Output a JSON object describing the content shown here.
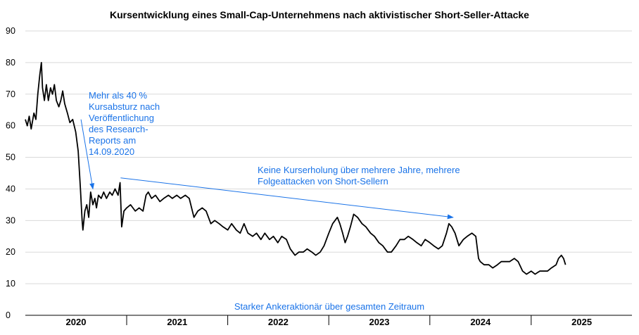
{
  "chart_data": {
    "type": "line",
    "title": "Kursentwicklung eines Small-Cap-Unternehmens nach aktivistischer Short-Seller-Attacke",
    "xlabel": "",
    "ylabel": "",
    "ylim": [
      0,
      90
    ],
    "yticks": [
      0,
      10,
      20,
      30,
      40,
      50,
      60,
      70,
      80,
      90
    ],
    "xlim": [
      "2020-01-01",
      "2025-12-31"
    ],
    "year_labels": [
      "2020",
      "2021",
      "2022",
      "2023",
      "2024",
      "2025"
    ],
    "grid": true,
    "line_color": "#000000",
    "annotation_color": "#1a73e8",
    "series": [
      {
        "points": [
          [
            "2020-01-01",
            62
          ],
          [
            "2020-01-08",
            60
          ],
          [
            "2020-01-15",
            63
          ],
          [
            "2020-01-22",
            59
          ],
          [
            "2020-02-01",
            64
          ],
          [
            "2020-02-08",
            62
          ],
          [
            "2020-02-15",
            70
          ],
          [
            "2020-02-22",
            76
          ],
          [
            "2020-02-28",
            80
          ],
          [
            "2020-03-03",
            72
          ],
          [
            "2020-03-10",
            68
          ],
          [
            "2020-03-17",
            73
          ],
          [
            "2020-03-24",
            68
          ],
          [
            "2020-04-01",
            72
          ],
          [
            "2020-04-08",
            70
          ],
          [
            "2020-04-15",
            73
          ],
          [
            "2020-04-22",
            68
          ],
          [
            "2020-05-01",
            66
          ],
          [
            "2020-05-08",
            68
          ],
          [
            "2020-05-15",
            71
          ],
          [
            "2020-05-22",
            67
          ],
          [
            "2020-06-01",
            64
          ],
          [
            "2020-06-10",
            61
          ],
          [
            "2020-06-20",
            62
          ],
          [
            "2020-07-01",
            58
          ],
          [
            "2020-07-10",
            52
          ],
          [
            "2020-07-18",
            40
          ],
          [
            "2020-07-24",
            30
          ],
          [
            "2020-07-27",
            27
          ],
          [
            "2020-08-03",
            33
          ],
          [
            "2020-08-10",
            35
          ],
          [
            "2020-08-17",
            31
          ],
          [
            "2020-08-24",
            39
          ],
          [
            "2020-09-01",
            35
          ],
          [
            "2020-09-08",
            37
          ],
          [
            "2020-09-14",
            34
          ],
          [
            "2020-09-21",
            38
          ],
          [
            "2020-10-01",
            37
          ],
          [
            "2020-10-10",
            39
          ],
          [
            "2020-10-20",
            37
          ],
          [
            "2020-11-01",
            39
          ],
          [
            "2020-11-10",
            38
          ],
          [
            "2020-11-20",
            40
          ],
          [
            "2020-12-01",
            38
          ],
          [
            "2020-12-08",
            42
          ],
          [
            "2020-12-14",
            28
          ],
          [
            "2020-12-22",
            33
          ],
          [
            "2021-01-01",
            34
          ],
          [
            "2021-01-15",
            35
          ],
          [
            "2021-02-01",
            33
          ],
          [
            "2021-02-15",
            34
          ],
          [
            "2021-03-01",
            33
          ],
          [
            "2021-03-12",
            38
          ],
          [
            "2021-03-20",
            39
          ],
          [
            "2021-04-01",
            37
          ],
          [
            "2021-04-15",
            38
          ],
          [
            "2021-05-01",
            36
          ],
          [
            "2021-05-15",
            37
          ],
          [
            "2021-06-01",
            38
          ],
          [
            "2021-06-15",
            37
          ],
          [
            "2021-07-01",
            38
          ],
          [
            "2021-07-15",
            37
          ],
          [
            "2021-08-01",
            38
          ],
          [
            "2021-08-15",
            37
          ],
          [
            "2021-09-01",
            31
          ],
          [
            "2021-09-15",
            33
          ],
          [
            "2021-10-01",
            34
          ],
          [
            "2021-10-15",
            33
          ],
          [
            "2021-11-01",
            29
          ],
          [
            "2021-11-15",
            30
          ],
          [
            "2021-12-01",
            29
          ],
          [
            "2021-12-15",
            28
          ],
          [
            "2022-01-01",
            27
          ],
          [
            "2022-01-15",
            29
          ],
          [
            "2022-02-01",
            27
          ],
          [
            "2022-02-15",
            26
          ],
          [
            "2022-03-01",
            29
          ],
          [
            "2022-03-15",
            26
          ],
          [
            "2022-04-01",
            25
          ],
          [
            "2022-04-15",
            26
          ],
          [
            "2022-05-01",
            24
          ],
          [
            "2022-05-15",
            26
          ],
          [
            "2022-06-01",
            24
          ],
          [
            "2022-06-15",
            25
          ],
          [
            "2022-07-01",
            23
          ],
          [
            "2022-07-15",
            25
          ],
          [
            "2022-08-01",
            24
          ],
          [
            "2022-08-15",
            21
          ],
          [
            "2022-09-01",
            19
          ],
          [
            "2022-09-15",
            20
          ],
          [
            "2022-10-01",
            20
          ],
          [
            "2022-10-15",
            21
          ],
          [
            "2022-11-01",
            20
          ],
          [
            "2022-11-15",
            19
          ],
          [
            "2022-12-01",
            20
          ],
          [
            "2022-12-15",
            22
          ],
          [
            "2023-01-01",
            26
          ],
          [
            "2023-01-15",
            29
          ],
          [
            "2023-02-01",
            31
          ],
          [
            "2023-02-10",
            29
          ],
          [
            "2023-02-20",
            26
          ],
          [
            "2023-03-01",
            23
          ],
          [
            "2023-03-10",
            25
          ],
          [
            "2023-03-20",
            28
          ],
          [
            "2023-04-01",
            32
          ],
          [
            "2023-04-15",
            31
          ],
          [
            "2023-05-01",
            29
          ],
          [
            "2023-05-15",
            28
          ],
          [
            "2023-06-01",
            26
          ],
          [
            "2023-06-15",
            25
          ],
          [
            "2023-07-01",
            23
          ],
          [
            "2023-07-15",
            22
          ],
          [
            "2023-08-01",
            20
          ],
          [
            "2023-08-15",
            20
          ],
          [
            "2023-09-01",
            22
          ],
          [
            "2023-09-15",
            24
          ],
          [
            "2023-10-01",
            24
          ],
          [
            "2023-10-15",
            25
          ],
          [
            "2023-11-01",
            24
          ],
          [
            "2023-11-15",
            23
          ],
          [
            "2023-12-01",
            22
          ],
          [
            "2023-12-15",
            24
          ],
          [
            "2024-01-01",
            23
          ],
          [
            "2024-01-15",
            22
          ],
          [
            "2024-02-01",
            21
          ],
          [
            "2024-02-15",
            22
          ],
          [
            "2024-03-01",
            26
          ],
          [
            "2024-03-10",
            29
          ],
          [
            "2024-03-20",
            28
          ],
          [
            "2024-04-01",
            26
          ],
          [
            "2024-04-15",
            22
          ],
          [
            "2024-05-01",
            24
          ],
          [
            "2024-05-15",
            25
          ],
          [
            "2024-06-01",
            26
          ],
          [
            "2024-06-15",
            25
          ],
          [
            "2024-06-25",
            18
          ],
          [
            "2024-07-01",
            17
          ],
          [
            "2024-07-15",
            16
          ],
          [
            "2024-08-01",
            16
          ],
          [
            "2024-08-15",
            15
          ],
          [
            "2024-09-01",
            16
          ],
          [
            "2024-09-15",
            17
          ],
          [
            "2024-10-01",
            17
          ],
          [
            "2024-10-15",
            17
          ],
          [
            "2024-11-01",
            18
          ],
          [
            "2024-11-15",
            17
          ],
          [
            "2024-12-01",
            14
          ],
          [
            "2024-12-15",
            13
          ],
          [
            "2025-01-01",
            14
          ],
          [
            "2025-01-15",
            13
          ],
          [
            "2025-02-01",
            14
          ],
          [
            "2025-02-15",
            14
          ],
          [
            "2025-03-01",
            14
          ],
          [
            "2025-03-15",
            15
          ],
          [
            "2025-04-01",
            16
          ],
          [
            "2025-04-10",
            18
          ],
          [
            "2025-04-20",
            19
          ],
          [
            "2025-04-28",
            18
          ],
          [
            "2025-05-05",
            16
          ]
        ]
      }
    ],
    "annotations": [
      {
        "lines": [
          "Mehr als 40 %",
          "Kursabsturz nach",
          "Veröffentlichung",
          "des Research-",
          "Reports am",
          "14.09.2020"
        ],
        "arrow_from": [
          "2020-07-20",
          62
        ],
        "arrow_to": [
          "2020-09-01",
          40
        ]
      },
      {
        "lines": [
          "Keine Kurserholung über mehrere Jahre, mehrere",
          "Folgeattacken von Short-Sellern"
        ],
        "arrow_from": [
          "2020-12-10",
          43.5
        ],
        "arrow_to": [
          "2024-03-25",
          31
        ]
      },
      {
        "lines": [
          "Starker Ankeraktionär über gesamten Zeitraum"
        ]
      }
    ]
  }
}
